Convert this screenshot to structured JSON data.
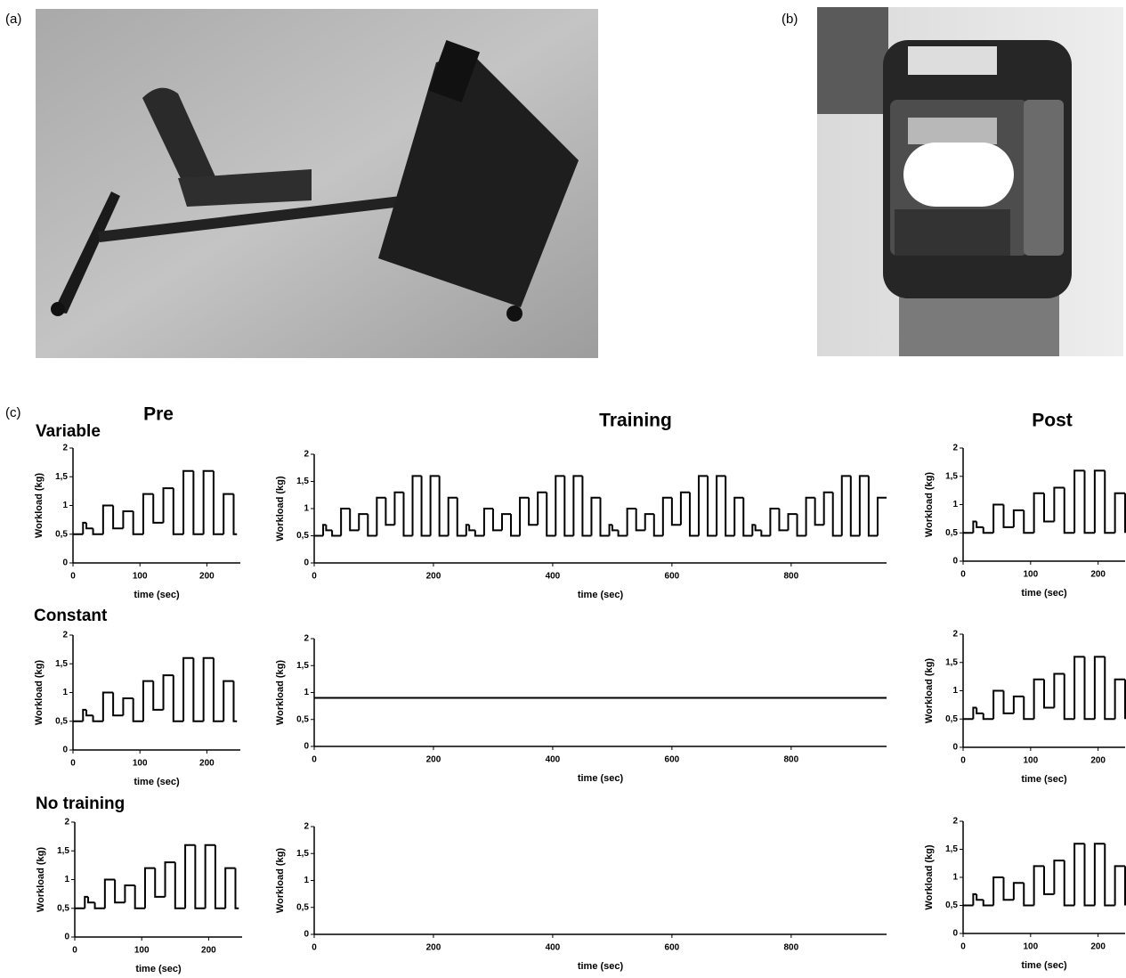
{
  "panel_labels": [
    "(a)",
    "(b)",
    "(c)"
  ],
  "column_titles": [
    "Pre",
    "Training",
    "Post"
  ],
  "row_labels": [
    "Variable",
    "Constant",
    "No training"
  ],
  "chart_data": [
    {
      "type": "line",
      "step": true,
      "ylabel": "Workload (kg)",
      "xlabel": "time (sec)",
      "color": "#000000",
      "x": [
        0,
        15,
        20,
        30,
        45,
        60,
        75,
        90,
        105,
        120,
        135,
        150,
        165,
        180,
        195,
        210,
        225,
        240,
        245
      ],
      "values": [
        0.5,
        0.7,
        0.6,
        0.5,
        1,
        0.6,
        0.9,
        0.5,
        1.2,
        0.7,
        1.3,
        0.5,
        1.6,
        0.5,
        1.6,
        0.5,
        1.2,
        0.5,
        0.5
      ],
      "xlim": [
        0,
        250
      ],
      "ylim": [
        0,
        2
      ],
      "xticks": [
        0,
        100,
        200
      ],
      "yticks": [
        0,
        {
          "value": 0.5,
          "label": "0,5"
        },
        1,
        {
          "value": 1.5,
          "label": "1,5"
        },
        2
      ]
    },
    {
      "type": "line",
      "step": true,
      "ylabel": "Workload (kg)",
      "xlabel": "time (sec)",
      "color": "#000000",
      "x": [
        0,
        15,
        20,
        30,
        45,
        60,
        75,
        90,
        105,
        120,
        135,
        150,
        165,
        180,
        195,
        210,
        225,
        240,
        255,
        260,
        270,
        285,
        300,
        315,
        330,
        345,
        360,
        375,
        390,
        405,
        420,
        435,
        450,
        465,
        480,
        495,
        500,
        510,
        525,
        540,
        555,
        570,
        585,
        600,
        615,
        630,
        645,
        660,
        675,
        690,
        705,
        720,
        735,
        740,
        750,
        765,
        780,
        795,
        810,
        825,
        840,
        855,
        870,
        885,
        900,
        915,
        930,
        945,
        960
      ],
      "values": [
        0.5,
        0.7,
        0.6,
        0.5,
        1,
        0.6,
        0.9,
        0.5,
        1.2,
        0.7,
        1.3,
        0.5,
        1.6,
        0.5,
        1.6,
        0.5,
        1.2,
        0.5,
        0.7,
        0.6,
        0.5,
        1,
        0.6,
        0.9,
        0.5,
        1.2,
        0.7,
        1.3,
        0.5,
        1.6,
        0.5,
        1.6,
        0.5,
        1.2,
        0.5,
        0.7,
        0.6,
        0.5,
        1,
        0.6,
        0.9,
        0.5,
        1.2,
        0.7,
        1.3,
        0.5,
        1.6,
        0.5,
        1.6,
        0.5,
        1.2,
        0.5,
        0.7,
        0.6,
        0.5,
        1,
        0.6,
        0.9,
        0.5,
        1.2,
        0.7,
        1.3,
        0.5,
        1.6,
        0.5,
        1.6,
        0.5,
        1.2,
        1.2
      ],
      "xlim": [
        0,
        960
      ],
      "ylim": [
        0,
        2
      ],
      "xticks": [
        0,
        200,
        400,
        600,
        800
      ],
      "yticks": [
        0,
        {
          "value": 0.5,
          "label": "0,5"
        },
        1,
        {
          "value": 1.5,
          "label": "1,5"
        },
        2
      ]
    },
    {
      "type": "line",
      "step": true,
      "ylabel": "Workload (kg)",
      "xlabel": "time (sec)",
      "color": "#000000",
      "x": [
        0,
        15,
        20,
        30,
        45,
        60,
        75,
        90,
        105,
        120,
        135,
        150,
        165,
        180,
        195,
        210,
        225,
        240
      ],
      "values": [
        0.5,
        0.7,
        0.6,
        0.5,
        1,
        0.6,
        0.9,
        0.5,
        1.2,
        0.7,
        1.3,
        0.5,
        1.6,
        0.5,
        1.6,
        0.5,
        1.2,
        0.5
      ],
      "xlim": [
        0,
        240
      ],
      "ylim": [
        0,
        2
      ],
      "xticks": [
        0,
        100,
        200
      ],
      "yticks": [
        0,
        {
          "value": 0.5,
          "label": "0,5"
        },
        1,
        {
          "value": 1.5,
          "label": "1,5"
        },
        2
      ]
    },
    {
      "type": "line",
      "step": true,
      "ylabel": "Workload (kg)",
      "xlabel": "time (sec)",
      "color": "#000000",
      "x": [
        0,
        15,
        20,
        30,
        45,
        60,
        75,
        90,
        105,
        120,
        135,
        150,
        165,
        180,
        195,
        210,
        225,
        240,
        245
      ],
      "values": [
        0.5,
        0.7,
        0.6,
        0.5,
        1,
        0.6,
        0.9,
        0.5,
        1.2,
        0.7,
        1.3,
        0.5,
        1.6,
        0.5,
        1.6,
        0.5,
        1.2,
        0.5,
        0.5
      ],
      "xlim": [
        0,
        250
      ],
      "ylim": [
        0,
        2
      ],
      "xticks": [
        0,
        100,
        200
      ],
      "yticks": [
        0,
        {
          "value": 0.5,
          "label": "0,5"
        },
        1,
        {
          "value": 1.5,
          "label": "1,5"
        },
        2
      ]
    },
    {
      "type": "line",
      "step": true,
      "ylabel": "Workload (kg)",
      "xlabel": "time (sec)",
      "color": "#000000",
      "x": [
        0,
        960
      ],
      "values": [
        0.9,
        0.9
      ],
      "xlim": [
        0,
        960
      ],
      "ylim": [
        0,
        2
      ],
      "xticks": [
        0,
        200,
        400,
        600,
        800
      ],
      "yticks": [
        0,
        {
          "value": 0.5,
          "label": "0,5"
        },
        1,
        {
          "value": 1.5,
          "label": "1,5"
        },
        2
      ]
    },
    {
      "type": "line",
      "step": true,
      "ylabel": "Workload (kg)",
      "xlabel": "time (sec)",
      "color": "#000000",
      "x": [
        0,
        15,
        20,
        30,
        45,
        60,
        75,
        90,
        105,
        120,
        135,
        150,
        165,
        180,
        195,
        210,
        225,
        240
      ],
      "values": [
        0.5,
        0.7,
        0.6,
        0.5,
        1,
        0.6,
        0.9,
        0.5,
        1.2,
        0.7,
        1.3,
        0.5,
        1.6,
        0.5,
        1.6,
        0.5,
        1.2,
        0.5
      ],
      "xlim": [
        0,
        240
      ],
      "ylim": [
        0,
        2
      ],
      "xticks": [
        0,
        100,
        200
      ],
      "yticks": [
        0,
        {
          "value": 0.5,
          "label": "0,5"
        },
        1,
        {
          "value": 1.5,
          "label": "1,5"
        },
        2
      ]
    },
    {
      "type": "line",
      "step": true,
      "ylabel": "Workload (kg)",
      "xlabel": "time (sec)",
      "color": "#000000",
      "x": [
        0,
        15,
        20,
        30,
        45,
        60,
        75,
        90,
        105,
        120,
        135,
        150,
        165,
        180,
        195,
        210,
        225,
        240,
        245
      ],
      "values": [
        0.5,
        0.7,
        0.6,
        0.5,
        1,
        0.6,
        0.9,
        0.5,
        1.2,
        0.7,
        1.3,
        0.5,
        1.6,
        0.5,
        1.6,
        0.5,
        1.2,
        0.5,
        0.5
      ],
      "xlim": [
        0,
        250
      ],
      "ylim": [
        0,
        2
      ],
      "xticks": [
        0,
        100,
        200
      ],
      "yticks": [
        0,
        {
          "value": 0.5,
          "label": "0,5"
        },
        1,
        {
          "value": 1.5,
          "label": "1,5"
        },
        2
      ]
    },
    {
      "type": "line",
      "step": true,
      "ylabel": "Workload (kg)",
      "xlabel": "time (sec)",
      "color": "#000000",
      "xlim": [
        0,
        960
      ],
      "ylim": [
        0,
        2
      ],
      "xticks": [
        0,
        200,
        400,
        600,
        800
      ],
      "yticks": [
        0,
        {
          "value": 0.5,
          "label": "0,5"
        },
        1,
        {
          "value": 1.5,
          "label": "1,5"
        },
        2
      ]
    },
    {
      "type": "line",
      "step": true,
      "ylabel": "Workload (kg)",
      "xlabel": "time (sec)",
      "color": "#000000",
      "x": [
        0,
        15,
        20,
        30,
        45,
        60,
        75,
        90,
        105,
        120,
        135,
        150,
        165,
        180,
        195,
        210,
        225,
        240
      ],
      "values": [
        0.5,
        0.7,
        0.6,
        0.5,
        1,
        0.6,
        0.9,
        0.5,
        1.2,
        0.7,
        1.3,
        0.5,
        1.6,
        0.5,
        1.6,
        0.5,
        1.2,
        0.5
      ],
      "xlim": [
        0,
        240
      ],
      "ylim": [
        0,
        2
      ],
      "xticks": [
        0,
        100,
        200
      ],
      "yticks": [
        0,
        {
          "value": 0.5,
          "label": "0,5"
        },
        1,
        {
          "value": 1.5,
          "label": "1,5"
        },
        2
      ]
    }
  ]
}
